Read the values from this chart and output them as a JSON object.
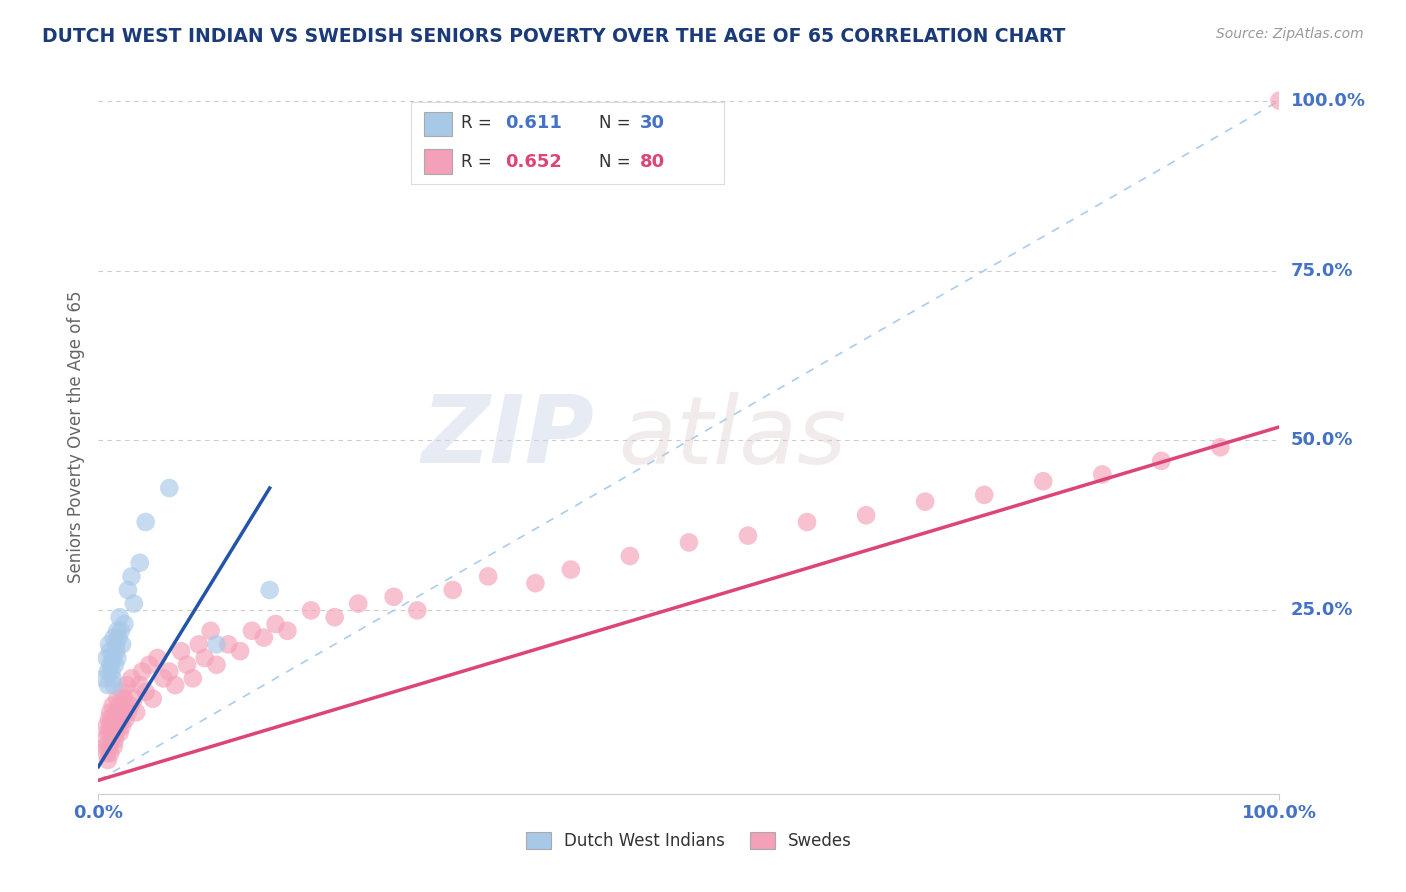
{
  "title": "DUTCH WEST INDIAN VS SWEDISH SENIORS POVERTY OVER THE AGE OF 65 CORRELATION CHART",
  "source_text": "Source: ZipAtlas.com",
  "ylabel": "Seniors Poverty Over the Age of 65",
  "xlim": [
    0,
    1
  ],
  "ylim": [
    0,
    1
  ],
  "xtick_labels": [
    "0.0%",
    "100.0%"
  ],
  "ytick_labels": [
    "25.0%",
    "50.0%",
    "75.0%",
    "100.0%"
  ],
  "ytick_positions": [
    0.25,
    0.5,
    0.75,
    1.0
  ],
  "blue_color": "#a8c8e8",
  "pink_color": "#f4a0b8",
  "blue_line_color": "#2255aa",
  "pink_line_color": "#dd4477",
  "dashed_line_color": "#aaccee",
  "title_color": "#1a3a7a",
  "source_color": "#999999",
  "axis_label_color": "#666666",
  "tick_label_color": "#4472c4",
  "pink_tick_label_color": "#dd4477",
  "background_color": "#ffffff",
  "legend_box_color": "#f0f4ff",
  "dutch_west_indian_x": [
    0.005,
    0.007,
    0.008,
    0.008,
    0.009,
    0.01,
    0.01,
    0.011,
    0.012,
    0.012,
    0.013,
    0.013,
    0.014,
    0.015,
    0.015,
    0.016,
    0.016,
    0.017,
    0.018,
    0.019,
    0.02,
    0.022,
    0.025,
    0.028,
    0.03,
    0.035,
    0.04,
    0.06,
    0.1,
    0.145
  ],
  "dutch_west_indian_y": [
    0.15,
    0.18,
    0.16,
    0.14,
    0.2,
    0.17,
    0.19,
    0.16,
    0.18,
    0.15,
    0.21,
    0.14,
    0.17,
    0.19,
    0.2,
    0.22,
    0.18,
    0.21,
    0.24,
    0.22,
    0.2,
    0.23,
    0.28,
    0.3,
    0.26,
    0.32,
    0.38,
    0.43,
    0.2,
    0.28
  ],
  "swedes_x": [
    0.005,
    0.006,
    0.007,
    0.007,
    0.008,
    0.008,
    0.009,
    0.009,
    0.01,
    0.01,
    0.01,
    0.011,
    0.011,
    0.012,
    0.012,
    0.013,
    0.013,
    0.014,
    0.014,
    0.015,
    0.015,
    0.016,
    0.016,
    0.017,
    0.018,
    0.018,
    0.019,
    0.02,
    0.02,
    0.022,
    0.023,
    0.024,
    0.025,
    0.027,
    0.028,
    0.03,
    0.032,
    0.035,
    0.037,
    0.04,
    0.043,
    0.046,
    0.05,
    0.055,
    0.06,
    0.065,
    0.07,
    0.075,
    0.08,
    0.085,
    0.09,
    0.095,
    0.1,
    0.11,
    0.12,
    0.13,
    0.14,
    0.15,
    0.16,
    0.18,
    0.2,
    0.22,
    0.25,
    0.27,
    0.3,
    0.33,
    0.37,
    0.4,
    0.45,
    0.5,
    0.55,
    0.6,
    0.65,
    0.7,
    0.75,
    0.8,
    0.85,
    0.9,
    0.95,
    1.0
  ],
  "swedes_y": [
    0.06,
    0.05,
    0.08,
    0.04,
    0.07,
    0.03,
    0.09,
    0.05,
    0.08,
    0.04,
    0.1,
    0.06,
    0.09,
    0.07,
    0.11,
    0.05,
    0.08,
    0.09,
    0.06,
    0.1,
    0.07,
    0.12,
    0.08,
    0.1,
    0.11,
    0.07,
    0.09,
    0.13,
    0.08,
    0.12,
    0.09,
    0.14,
    0.1,
    0.11,
    0.15,
    0.12,
    0.1,
    0.14,
    0.16,
    0.13,
    0.17,
    0.12,
    0.18,
    0.15,
    0.16,
    0.14,
    0.19,
    0.17,
    0.15,
    0.2,
    0.18,
    0.22,
    0.17,
    0.2,
    0.19,
    0.22,
    0.21,
    0.23,
    0.22,
    0.25,
    0.24,
    0.26,
    0.27,
    0.25,
    0.28,
    0.3,
    0.29,
    0.31,
    0.33,
    0.35,
    0.36,
    0.38,
    0.39,
    0.41,
    0.42,
    0.44,
    0.45,
    0.47,
    0.49,
    1.0
  ],
  "blue_line_x0": 0.0,
  "blue_line_x1": 0.145,
  "blue_line_y0": 0.02,
  "blue_line_y1": 0.43,
  "pink_line_x0": 0.0,
  "pink_line_x1": 1.0,
  "pink_line_y0": 0.0,
  "pink_line_y1": 0.52
}
